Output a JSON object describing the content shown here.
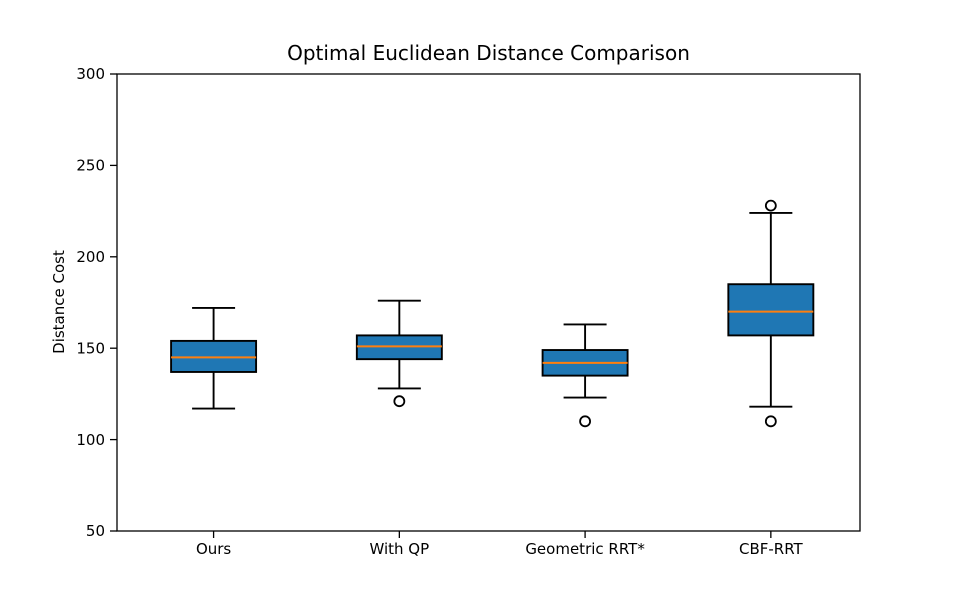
{
  "chart_data": {
    "type": "boxplot",
    "title": "Optimal Euclidean Distance Comparison",
    "xlabel": "",
    "ylabel": "Distance Cost",
    "ylim": [
      50,
      300
    ],
    "yticks": [
      50,
      100,
      150,
      200,
      250,
      300
    ],
    "grid": false,
    "legend": "none",
    "categories": [
      "Ours",
      "With QP",
      "Geometric RRT*",
      "CBF-RRT"
    ],
    "boxes": [
      {
        "label": "Ours",
        "whisker_low": 117,
        "q1": 137,
        "median": 145,
        "q3": 154,
        "whisker_high": 172,
        "outliers": []
      },
      {
        "label": "With QP",
        "whisker_low": 128,
        "q1": 144,
        "median": 151,
        "q3": 157,
        "whisker_high": 176,
        "outliers": [
          121
        ]
      },
      {
        "label": "Geometric RRT*",
        "whisker_low": 123,
        "q1": 135,
        "median": 142,
        "q3": 149,
        "whisker_high": 163,
        "outliers": [
          110
        ]
      },
      {
        "label": "CBF-RRT",
        "whisker_low": 118,
        "q1": 157,
        "median": 170,
        "q3": 185,
        "whisker_high": 224,
        "outliers": [
          110,
          228
        ]
      }
    ],
    "colors": {
      "box_fill": "#1f77b4",
      "median": "#ff7f0e",
      "line": "#000000",
      "background": "#ffffff"
    }
  }
}
